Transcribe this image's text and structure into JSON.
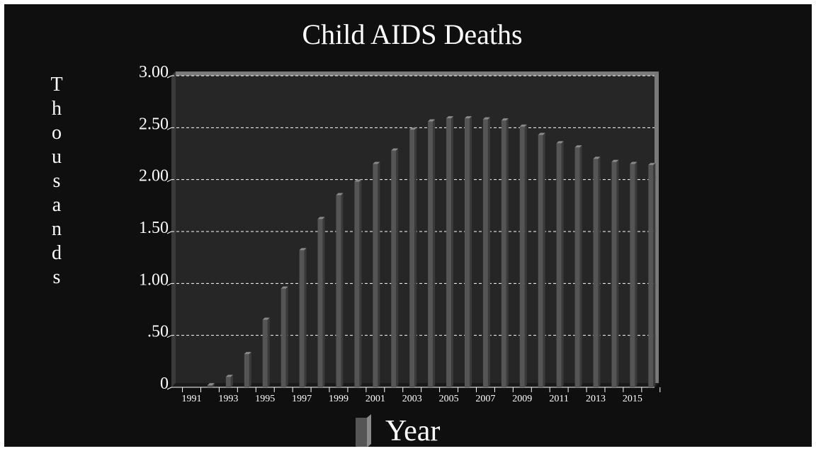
{
  "chart_data": {
    "type": "bar",
    "title": "Child AIDS Deaths",
    "ylabel": "Thousands",
    "legend": {
      "label": "Year",
      "placement": "bottom-center"
    },
    "ylim": [
      0,
      3
    ],
    "yticks": [
      {
        "value": 0,
        "label": "0"
      },
      {
        "value": 0.5,
        "label": ".50"
      },
      {
        "value": 1,
        "label": "1.00"
      },
      {
        "value": 1.5,
        "label": "1.50"
      },
      {
        "value": 2,
        "label": "2.00"
      },
      {
        "value": 2.5,
        "label": "2.50"
      },
      {
        "value": 3,
        "label": "3.00"
      }
    ],
    "grid": true,
    "categories": [
      1991,
      1992,
      1993,
      1994,
      1995,
      1996,
      1997,
      1998,
      1999,
      2000,
      2001,
      2002,
      2003,
      2004,
      2005,
      2006,
      2007,
      2008,
      2009,
      2010,
      2011,
      2012,
      2013,
      2014,
      2015,
      2016
    ],
    "tick_labels": [
      "1991",
      "1993",
      "1995",
      "1997",
      "1999",
      "2001",
      "2003",
      "2005",
      "2007",
      "2009",
      "2011",
      "2013",
      "2015"
    ],
    "values": [
      0.0,
      0.02,
      0.1,
      0.32,
      0.65,
      0.95,
      1.32,
      1.62,
      1.85,
      1.98,
      2.15,
      2.28,
      2.48,
      2.56,
      2.59,
      2.59,
      2.58,
      2.57,
      2.51,
      2.43,
      2.35,
      2.31,
      2.2,
      2.17,
      2.15,
      2.14
    ]
  },
  "colors": {
    "background": "#0f0f0f",
    "plot_background": "#262626",
    "bar_front": "#555555",
    "bar_top": "#8a8a8a",
    "bar_side": "#3a3a3a",
    "text": "#ffffff",
    "grid": "#ffffff",
    "frame": "#7a7a7a"
  }
}
